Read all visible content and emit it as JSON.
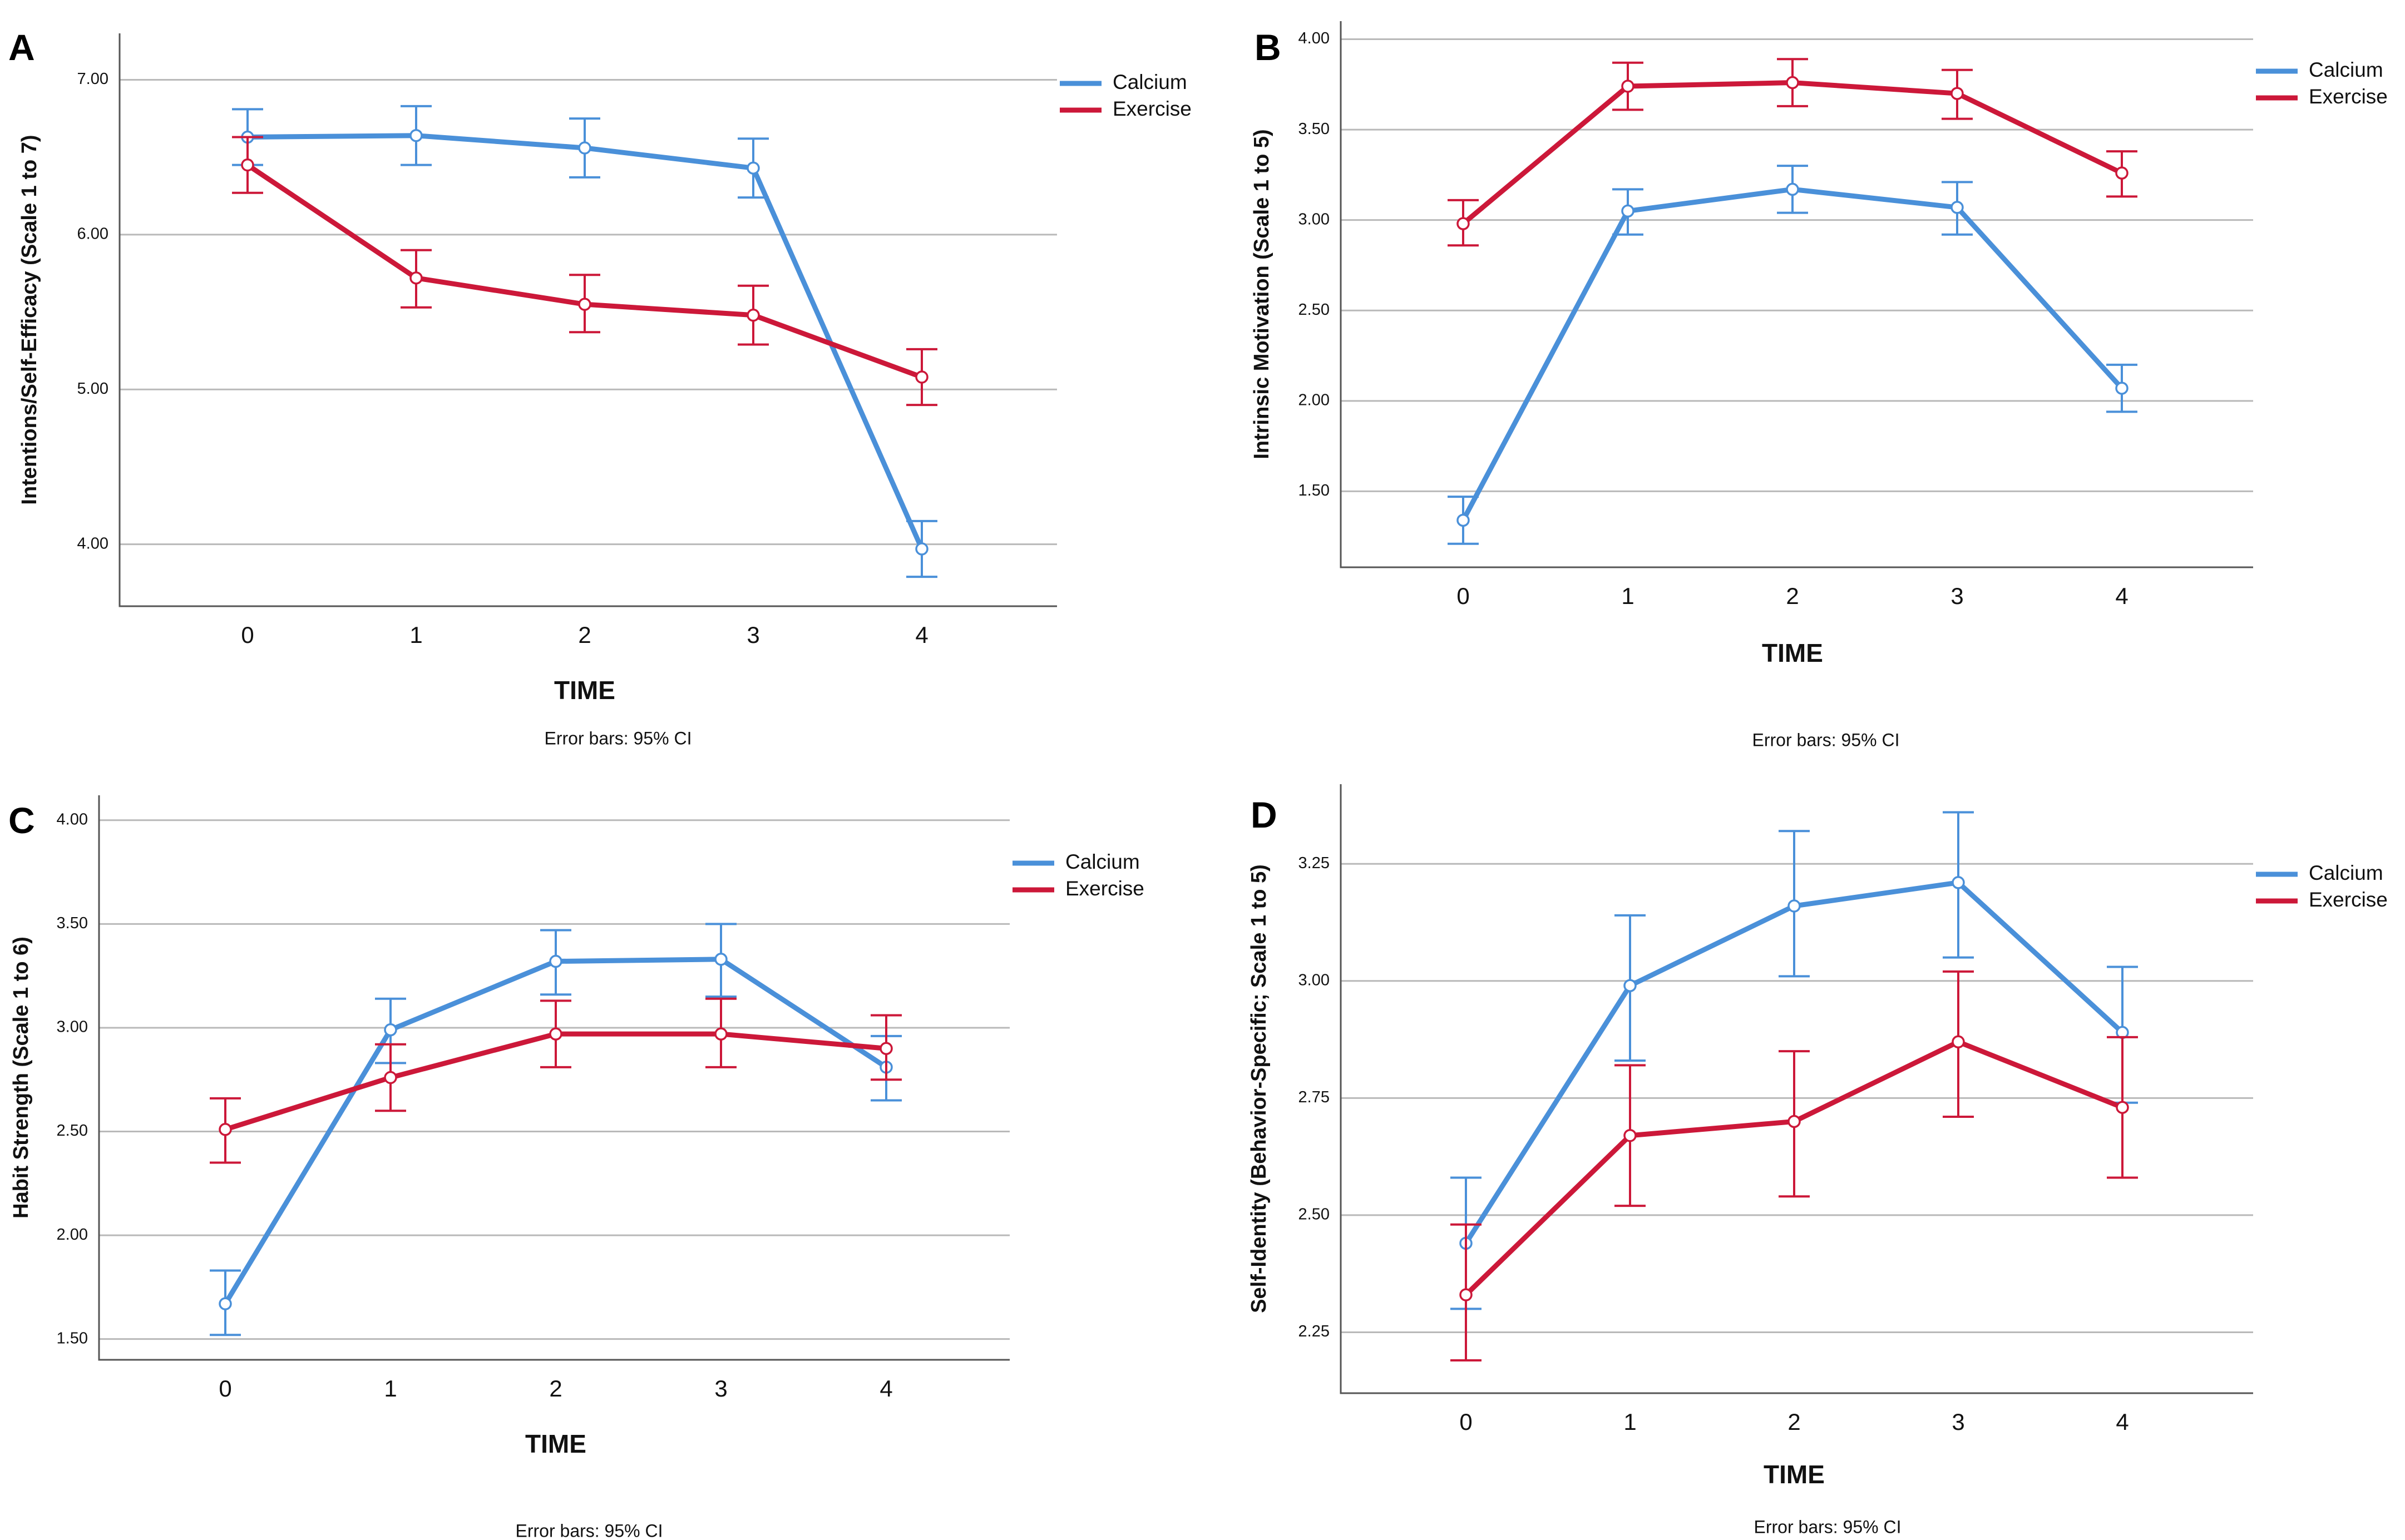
{
  "chart_data": [
    {
      "panel": "A",
      "type": "line",
      "x": [
        0,
        1,
        2,
        3,
        4
      ],
      "xticklabels": [
        "0",
        "1",
        "2",
        "3",
        "4"
      ],
      "xlabel": "TIME",
      "ylabel": "Intentions/Self-Efficacy (Scale 1 to 7)",
      "yticks": [
        4.0,
        5.0,
        6.0,
        7.0
      ],
      "yticklabels": [
        "4.00",
        "5.00",
        "6.00",
        "7.00"
      ],
      "ylim": [
        3.6,
        7.3
      ],
      "note": "Error bars: 95% CI",
      "series": [
        {
          "name": "Calcium",
          "color": "#4a90d9",
          "values": [
            6.63,
            6.64,
            6.56,
            6.43,
            3.97
          ],
          "lower": [
            6.45,
            6.45,
            6.37,
            6.24,
            3.79
          ],
          "upper": [
            6.81,
            6.83,
            6.75,
            6.62,
            4.15
          ]
        },
        {
          "name": "Exercise",
          "color": "#cc1839",
          "values": [
            6.45,
            5.72,
            5.55,
            5.48,
            5.08
          ],
          "lower": [
            6.27,
            5.53,
            5.37,
            5.29,
            4.9
          ],
          "upper": [
            6.63,
            5.9,
            5.74,
            5.67,
            5.26
          ]
        }
      ]
    },
    {
      "panel": "B",
      "type": "line",
      "x": [
        0,
        1,
        2,
        3,
        4
      ],
      "xticklabels": [
        "0",
        "1",
        "2",
        "3",
        "4"
      ],
      "xlabel": "TIME",
      "ylabel": "Intrinsic Motivation (Scale 1 to 5)",
      "yticks": [
        1.5,
        2.0,
        2.5,
        3.0,
        3.5,
        4.0
      ],
      "yticklabels": [
        "1.50",
        "2.00",
        "2.50",
        "3.00",
        "3.50",
        "4.00"
      ],
      "ylim": [
        1.08,
        4.1
      ],
      "note": "Error bars: 95% CI",
      "series": [
        {
          "name": "Calcium",
          "color": "#4a90d9",
          "values": [
            1.34,
            3.05,
            3.17,
            3.07,
            2.07
          ],
          "lower": [
            1.21,
            2.92,
            3.04,
            2.92,
            1.94
          ],
          "upper": [
            1.47,
            3.17,
            3.3,
            3.21,
            2.2
          ]
        },
        {
          "name": "Exercise",
          "color": "#cc1839",
          "values": [
            2.98,
            3.74,
            3.76,
            3.7,
            3.26
          ],
          "lower": [
            2.86,
            3.61,
            3.63,
            3.56,
            3.13
          ],
          "upper": [
            3.11,
            3.87,
            3.89,
            3.83,
            3.38
          ]
        }
      ]
    },
    {
      "panel": "C",
      "type": "line",
      "x": [
        0,
        1,
        2,
        3,
        4
      ],
      "xticklabels": [
        "0",
        "1",
        "2",
        "3",
        "4"
      ],
      "xlabel": "TIME",
      "ylabel": "Habit Strength (Scale 1 to 6)",
      "yticks": [
        1.5,
        2.0,
        2.5,
        3.0,
        3.5,
        4.0
      ],
      "yticklabels": [
        "1.50",
        "2.00",
        "2.50",
        "3.00",
        "3.50",
        "4.00"
      ],
      "ylim": [
        1.4,
        4.12
      ],
      "note": "Error bars: 95% CI",
      "series": [
        {
          "name": "Calcium",
          "color": "#4a90d9",
          "values": [
            1.67,
            2.99,
            3.32,
            3.33,
            2.81
          ],
          "lower": [
            1.52,
            2.83,
            3.16,
            3.15,
            2.65
          ],
          "upper": [
            1.83,
            3.14,
            3.47,
            3.5,
            2.96
          ]
        },
        {
          "name": "Exercise",
          "color": "#cc1839",
          "values": [
            2.51,
            2.76,
            2.97,
            2.97,
            2.9
          ],
          "lower": [
            2.35,
            2.6,
            2.81,
            2.81,
            2.75
          ],
          "upper": [
            2.66,
            2.92,
            3.13,
            3.14,
            3.06
          ]
        }
      ]
    },
    {
      "panel": "D",
      "type": "line",
      "x": [
        0,
        1,
        2,
        3,
        4
      ],
      "xticklabels": [
        "0",
        "1",
        "2",
        "3",
        "4"
      ],
      "xlabel": "TIME",
      "ylabel": "Self-Identity (Behavior-Specific; Scale 1 to 5)",
      "yticks": [
        2.25,
        2.5,
        2.75,
        3.0,
        3.25
      ],
      "yticklabels": [
        "2.25",
        "2.50",
        "2.75",
        "3.00",
        "3.25"
      ],
      "ylim": [
        2.12,
        3.42
      ],
      "note": "Error bars: 95% CI",
      "series": [
        {
          "name": "Calcium",
          "color": "#4a90d9",
          "values": [
            2.44,
            2.99,
            3.16,
            3.21,
            2.89
          ],
          "lower": [
            2.3,
            2.83,
            3.01,
            3.05,
            2.74
          ],
          "upper": [
            2.58,
            3.14,
            3.32,
            3.36,
            3.03
          ]
        },
        {
          "name": "Exercise",
          "color": "#cc1839",
          "values": [
            2.33,
            2.67,
            2.7,
            2.87,
            2.73
          ],
          "lower": [
            2.19,
            2.52,
            2.54,
            2.71,
            2.58
          ],
          "upper": [
            2.48,
            2.82,
            2.85,
            3.02,
            2.88
          ]
        }
      ]
    }
  ]
}
